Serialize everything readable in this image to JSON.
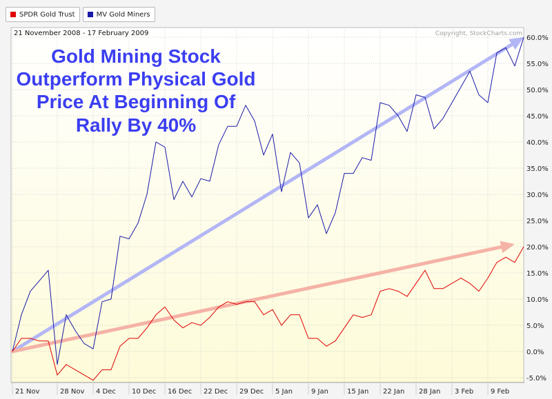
{
  "legend": [
    {
      "name": "SPDR Gold Trust",
      "color": "#e00000"
    },
    {
      "name": "MV Gold Miners",
      "color": "#1a1aa8"
    }
  ],
  "date_range": "21 November 2008 - 17 February 2009",
  "copyright": "Copyright, StockCharts.com",
  "annotation": [
    "Gold Mining Stock",
    "Outperform Physical Gold",
    "Price At Beginning Of",
    "Rally By 40%"
  ],
  "colors": {
    "gold_trust": "#e00000",
    "gold_miners": "#1a1aa8",
    "arrow_miners": "#b3b6f5",
    "arrow_gold": "#f5b2a6",
    "annotation": "#3b3ef0",
    "bg_top": "#ffffff",
    "bg_bottom": "#fdfbd8"
  },
  "chart_data": {
    "type": "line",
    "title": "Gold Mining Stock Outperform Physical Gold Price At Beginning Of Rally By 40%",
    "subtitle": "21 November 2008 - 17 February 2009",
    "xlabel": "",
    "ylabel": "",
    "ylim": [
      -5,
      60
    ],
    "y_ticks": [
      -5,
      0,
      5,
      10,
      15,
      20,
      25,
      30,
      35,
      40,
      45,
      50,
      55,
      60
    ],
    "y_tick_labels": [
      "-5.0%",
      "0.0%",
      "5.0%",
      "10.0%",
      "15.0%",
      "20.0%",
      "25.0%",
      "30.0%",
      "35.0%",
      "40.0%",
      "45.0%",
      "50.0%",
      "55.0%",
      "60.0%"
    ],
    "x_ticks": [
      {
        "label": "21 Nov",
        "index": 0
      },
      {
        "label": "28 Nov",
        "index": 5
      },
      {
        "label": "4 Dec",
        "index": 9
      },
      {
        "label": "10 Dec",
        "index": 13
      },
      {
        "label": "16 Dec",
        "index": 17
      },
      {
        "label": "22 Dec",
        "index": 21
      },
      {
        "label": "29 Dec",
        "index": 25
      },
      {
        "label": "5 Jan",
        "index": 29
      },
      {
        "label": "9 Jan",
        "index": 33
      },
      {
        "label": "15 Jan",
        "index": 37
      },
      {
        "label": "22 Jan",
        "index": 41
      },
      {
        "label": "28 Jan",
        "index": 45
      },
      {
        "label": "3 Feb",
        "index": 49
      },
      {
        "label": "9 Feb",
        "index": 53
      }
    ],
    "grid": true,
    "series": [
      {
        "name": "MV Gold Miners",
        "values": [
          0,
          7,
          11.5,
          13.5,
          15.5,
          -2.5,
          7,
          4,
          1.5,
          0.5,
          9.5,
          10,
          22,
          21.5,
          24.5,
          30,
          40,
          39,
          29,
          32.5,
          29.5,
          33,
          32.5,
          39.5,
          43,
          43,
          47,
          44,
          37.5,
          41.5,
          30.5,
          38,
          36,
          25.5,
          28,
          22.5,
          26.5,
          34,
          34,
          37,
          36.5,
          47.5,
          47,
          45,
          42,
          49,
          48.5,
          42.5,
          44.5,
          47.5,
          50.5,
          53.5,
          49,
          47.5,
          57,
          58,
          54.5,
          60
        ]
      },
      {
        "name": "SPDR Gold Trust",
        "values": [
          0,
          2.5,
          2.5,
          2,
          2,
          -4.5,
          -2.5,
          -3.5,
          -4.5,
          -5.5,
          -3.5,
          -3.5,
          1,
          2.5,
          2.5,
          4.5,
          7,
          8.5,
          6,
          4.5,
          5.5,
          5,
          6.5,
          8.5,
          9.5,
          9,
          9.5,
          9.5,
          7,
          8,
          5,
          7,
          7,
          2.5,
          2.5,
          1,
          2,
          4.5,
          7,
          6.5,
          7,
          11.5,
          12,
          11.5,
          10.5,
          13,
          15.5,
          12,
          12,
          13,
          14,
          13,
          11.5,
          14,
          17,
          18,
          17,
          20
        ]
      }
    ],
    "trend_arrows": [
      {
        "series": "MV Gold Miners",
        "from": [
          0,
          0
        ],
        "to": [
          57,
          60
        ]
      },
      {
        "series": "SPDR Gold Trust",
        "from": [
          0,
          0
        ],
        "to": [
          56,
          20.5
        ]
      }
    ]
  }
}
